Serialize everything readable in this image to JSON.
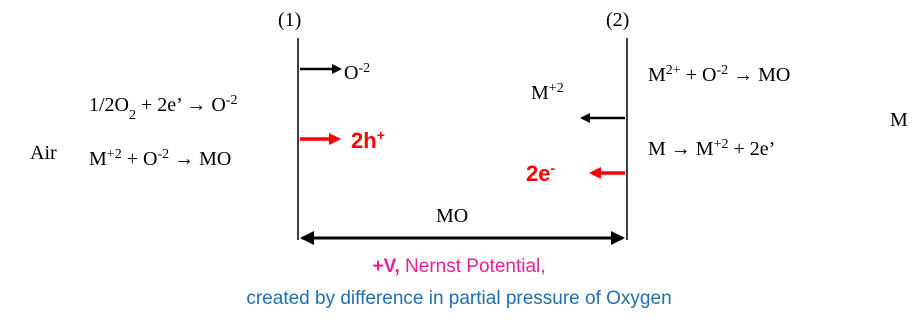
{
  "labels": {
    "boundary1": "(1)",
    "boundary2": "(2)",
    "air": "Air",
    "metal": "M",
    "oxide": "MO"
  },
  "reactions": {
    "oxygen_reduction": {
      "a": "1/2O",
      "a_sub": "2",
      "b": " + 2e’ → O",
      "b_sup": "-2"
    },
    "oxide_formation_left": {
      "a": "M",
      "a_sup": "+2",
      "b": " + O",
      "b_sup": "-2",
      "c": " → MO"
    },
    "oxide_formation_right": {
      "a": "M",
      "a_sup": "2+",
      "b": " + O",
      "b_sup": "-2",
      "c": " → MO"
    },
    "metal_oxidation": {
      "a": "M → M",
      "a_sup": "+2",
      "b": " + 2e’"
    }
  },
  "species": {
    "oxygen_ion": {
      "base": "O",
      "sup": "-2"
    },
    "metal_ion": {
      "base": "M",
      "sup": "+2"
    },
    "holes": {
      "base": "2h",
      "sup": "+"
    },
    "electrons": {
      "base": "2e",
      "sup": "-"
    }
  },
  "caption": {
    "voltage": "+V,",
    "nernst": " Nernst Potential,",
    "line2": "created by difference in partial pressure of Oxygen"
  },
  "colors": {
    "highlight_red": "#ff0000",
    "voltage_magenta": "#e5209a",
    "caption_blue": "#1f6fb2",
    "lines": "#000000"
  }
}
